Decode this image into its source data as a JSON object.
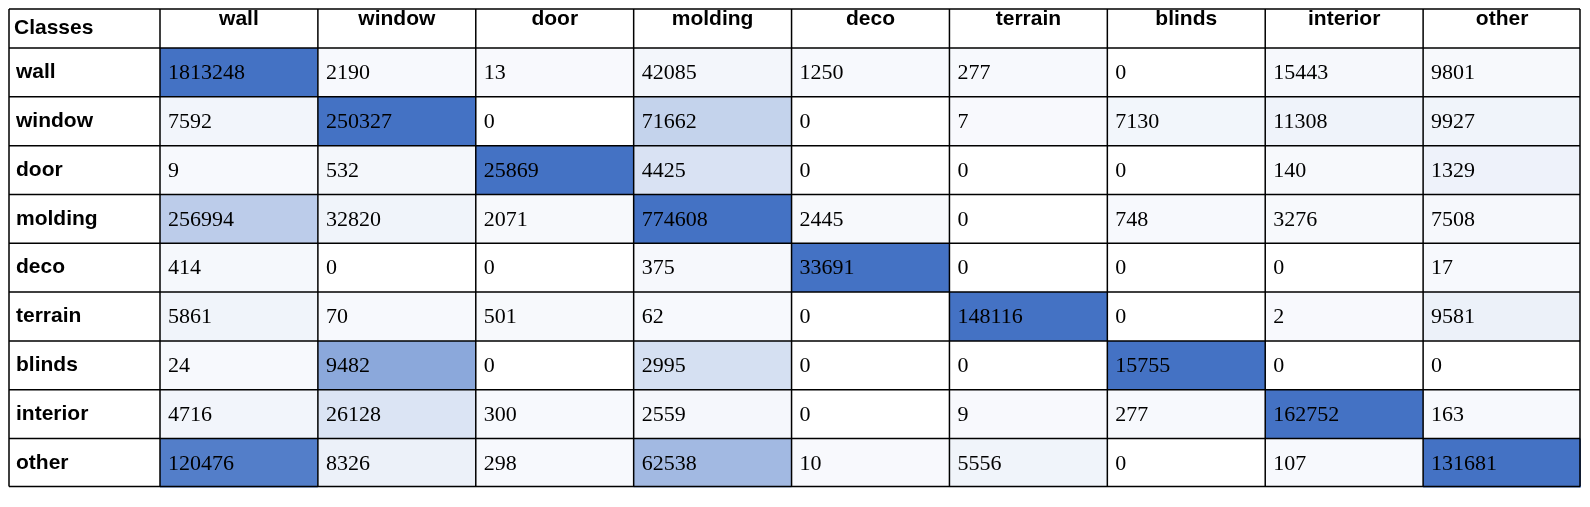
{
  "chart_data": {
    "type": "heatmap",
    "ylabel": "Classes",
    "color": "#4472c4",
    "data_labels": true,
    "categories": [
      "wall",
      "window",
      "door",
      "molding",
      "deco",
      "terrain",
      "blinds",
      "interior",
      "other"
    ],
    "y_categories": [
      "wall",
      "window",
      "door",
      "molding",
      "deco",
      "terrain",
      "blinds",
      "interior",
      "other"
    ],
    "cells": [
      [
        1813248,
        2190,
        13,
        42085,
        1250,
        277,
        0,
        15443,
        9801
      ],
      [
        7592,
        250327,
        0,
        71662,
        0,
        7,
        7130,
        11308,
        9927
      ],
      [
        9,
        532,
        25869,
        4425,
        0,
        0,
        0,
        140,
        1329
      ],
      [
        256994,
        32820,
        2071,
        774608,
        2445,
        0,
        748,
        3276,
        7508
      ],
      [
        414,
        0,
        0,
        375,
        33691,
        0,
        0,
        0,
        17
      ],
      [
        5861,
        70,
        501,
        62,
        0,
        148116,
        0,
        2,
        9581
      ],
      [
        24,
        9482,
        0,
        2995,
        0,
        0,
        15755,
        0,
        0
      ],
      [
        4716,
        26128,
        300,
        2559,
        0,
        9,
        277,
        162752,
        163
      ],
      [
        120476,
        8326,
        298,
        62538,
        10,
        5556,
        0,
        107,
        131681
      ]
    ]
  }
}
